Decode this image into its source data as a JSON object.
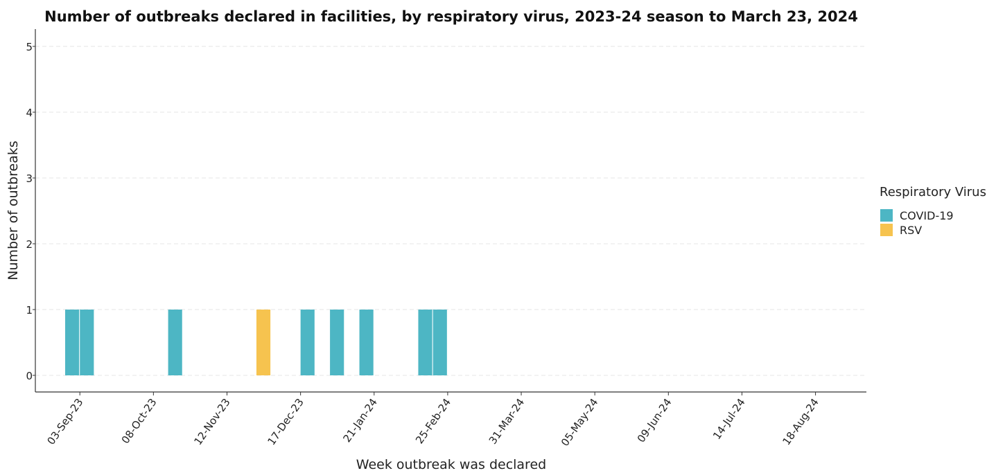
{
  "chart_data": {
    "type": "bar",
    "title": "Number of outbreaks declared in facilities, by respiratory virus, 2023-24 season to March 23, 2024",
    "xlabel": "Week outbreak was declared",
    "ylabel": "Number of outbreaks",
    "ylim": [
      0,
      5
    ],
    "yticks": [
      "0",
      "1",
      "2",
      "3",
      "4",
      "5"
    ],
    "xlim": [
      "2023-08-27",
      "2024-08-31"
    ],
    "xticks": [
      {
        "date": "2023-09-03",
        "label": "03-Sep-23"
      },
      {
        "date": "2023-10-08",
        "label": "08-Oct-23"
      },
      {
        "date": "2023-11-12",
        "label": "12-Nov-23"
      },
      {
        "date": "2023-12-17",
        "label": "17-Dec-23"
      },
      {
        "date": "2024-01-21",
        "label": "21-Jan-24"
      },
      {
        "date": "2024-02-25",
        "label": "25-Feb-24"
      },
      {
        "date": "2024-03-31",
        "label": "31-Mar-24"
      },
      {
        "date": "2024-05-05",
        "label": "05-May-24"
      },
      {
        "date": "2024-06-09",
        "label": "09-Jun-24"
      },
      {
        "date": "2024-07-14",
        "label": "14-Jul-24"
      },
      {
        "date": "2024-08-18",
        "label": "18-Aug-24"
      }
    ],
    "grid": true,
    "legend_position": "right",
    "legend_title": "Respiratory Virus",
    "series": [
      {
        "name": "COVID-19",
        "color": "#4DB6C4",
        "points": [
          {
            "week": "2023-08-27",
            "value": 1
          },
          {
            "week": "2023-09-03",
            "value": 1
          },
          {
            "week": "2023-10-15",
            "value": 1
          },
          {
            "week": "2023-12-17",
            "value": 1
          },
          {
            "week": "2023-12-31",
            "value": 1
          },
          {
            "week": "2024-01-14",
            "value": 1
          },
          {
            "week": "2024-02-11",
            "value": 1
          },
          {
            "week": "2024-02-18",
            "value": 1
          }
        ]
      },
      {
        "name": "RSV",
        "color": "#F6C34F",
        "points": [
          {
            "week": "2023-11-26",
            "value": 1
          }
        ]
      }
    ]
  }
}
